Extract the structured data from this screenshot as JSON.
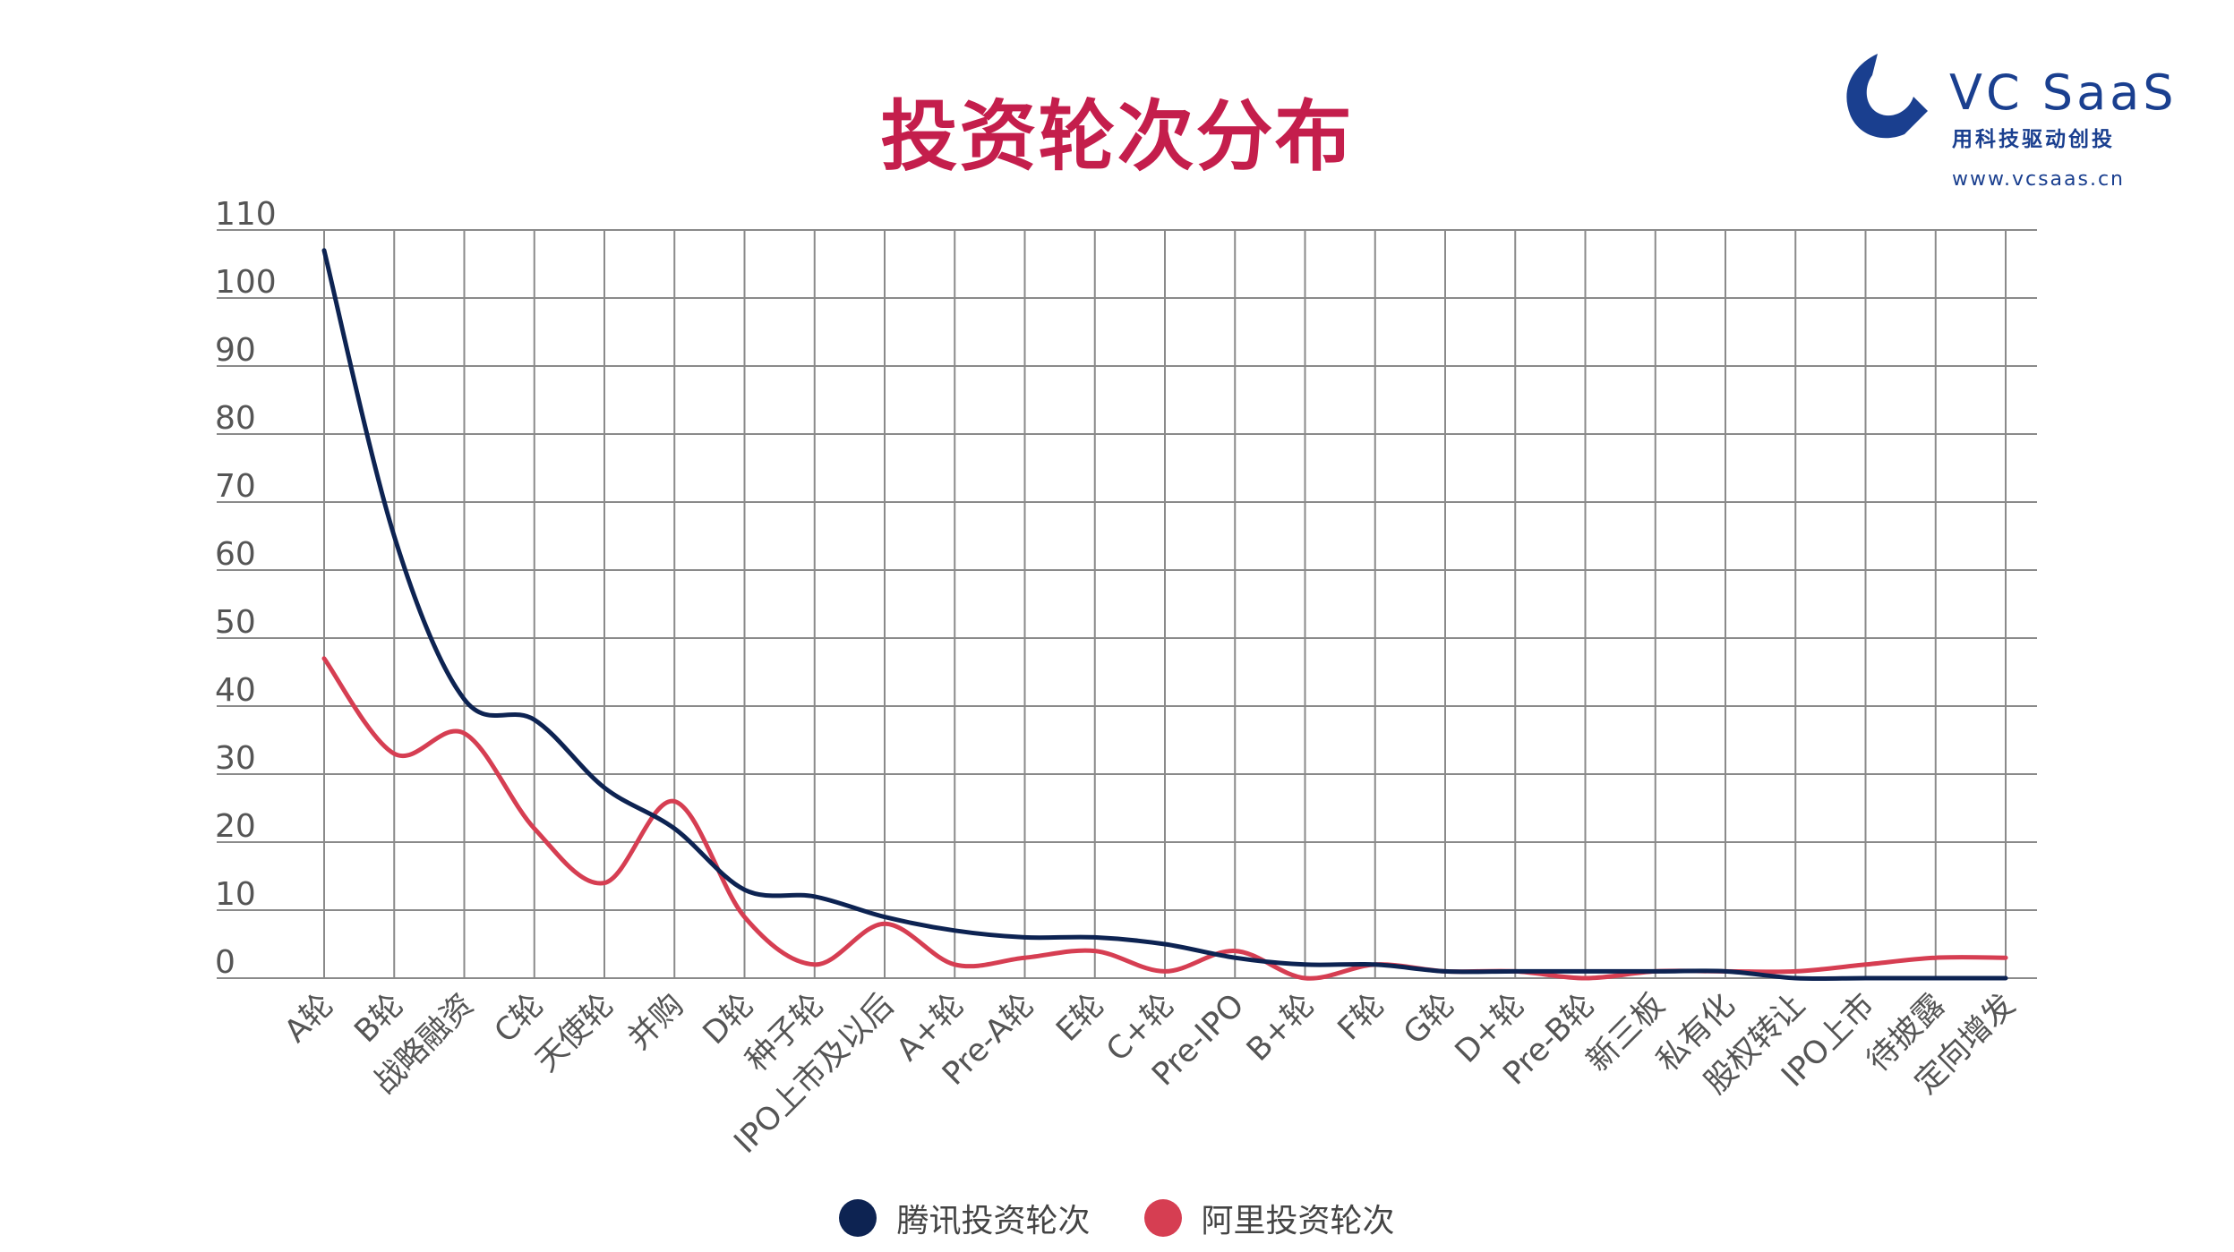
{
  "title": "投资轮次分布",
  "logo": {
    "brand": "VC  SaaS",
    "tagline": "用科技驱动创投",
    "url": "www.vcsaas.cn",
    "icon": "vcsaas-logo-icon",
    "color": "#1a3f8f"
  },
  "chart_data": {
    "type": "line",
    "title": "投资轮次分布",
    "xlabel": "",
    "ylabel": "",
    "ylim": [
      0,
      110
    ],
    "yticks": [
      0,
      10,
      20,
      30,
      40,
      50,
      60,
      70,
      80,
      90,
      100,
      110
    ],
    "grid": true,
    "legend_position": "bottom",
    "categories": [
      "A轮",
      "B轮",
      "战略融资",
      "C轮",
      "天使轮",
      "并购",
      "D轮",
      "种子轮",
      "IPO上市及以后",
      "A+轮",
      "Pre-A轮",
      "E轮",
      "C+轮",
      "Pre-IPO",
      "B+轮",
      "F轮",
      "G轮",
      "D+轮",
      "Pre-B轮",
      "新三板",
      "私有化",
      "股权转让",
      "IPO上市",
      "待披露",
      "定向增发"
    ],
    "series": [
      {
        "name": "腾讯投资轮次",
        "color": "#0d2352",
        "values": [
          107,
          65,
          41,
          38,
          28,
          22,
          13,
          12,
          9,
          7,
          6,
          6,
          5,
          3,
          2,
          2,
          1,
          1,
          1,
          1,
          1,
          0,
          0,
          0,
          0
        ]
      },
      {
        "name": "阿里投资轮次",
        "color": "#d63e52",
        "values": [
          47,
          33,
          36,
          22,
          14,
          26,
          9,
          2,
          8,
          2,
          3,
          4,
          1,
          4,
          0,
          2,
          1,
          1,
          0,
          1,
          1,
          1,
          2,
          3,
          3
        ]
      }
    ]
  }
}
